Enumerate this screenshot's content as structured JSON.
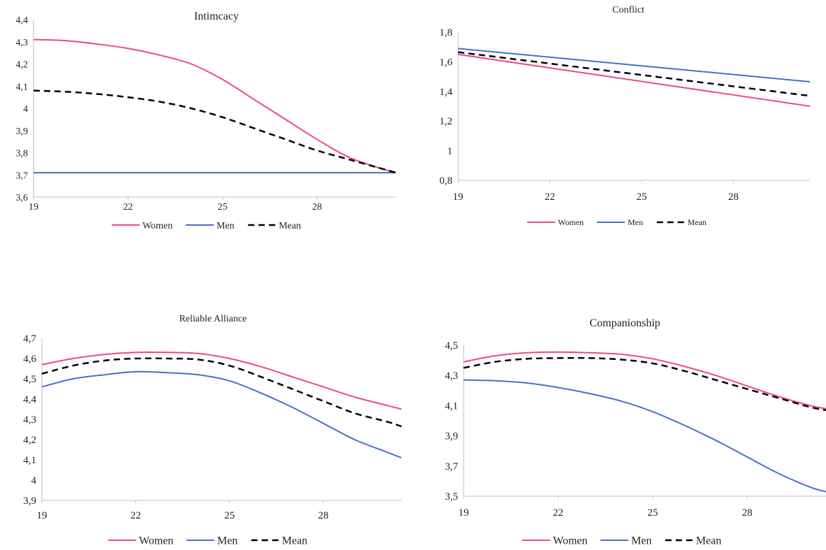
{
  "chart_data": [
    {
      "type": "line",
      "title": "Intimcacy",
      "x": [
        19,
        22,
        25,
        28,
        30.5
      ],
      "xticks": [
        19,
        22,
        25,
        28
      ],
      "ylim": [
        3.6,
        4.4
      ],
      "yticks": [
        "3,6",
        "3,7",
        "3,8",
        "3,9",
        "4",
        "4,1",
        "4,2",
        "4,3",
        "4,4"
      ],
      "grid": false,
      "legend": "bottom",
      "series": [
        {
          "name": "Women",
          "color": "#f0468c",
          "style": "solid",
          "x": [
            19,
            20,
            21,
            22,
            23,
            24,
            25,
            26,
            27,
            28,
            29,
            30,
            30.5
          ],
          "values": [
            4.31,
            4.305,
            4.29,
            4.27,
            4.24,
            4.2,
            4.13,
            4.04,
            3.95,
            3.86,
            3.78,
            3.73,
            3.71
          ]
        },
        {
          "name": "Men",
          "color": "#4472c4",
          "style": "solid",
          "x": [
            19,
            30.5
          ],
          "values": [
            3.71,
            3.71
          ]
        },
        {
          "name": "Mean",
          "color": "#000000",
          "style": "dashed",
          "x": [
            19,
            20,
            21,
            22,
            23,
            24,
            25,
            26,
            27,
            28,
            29,
            30,
            30.5
          ],
          "values": [
            4.08,
            4.075,
            4.065,
            4.05,
            4.03,
            4.0,
            3.96,
            3.91,
            3.86,
            3.81,
            3.77,
            3.73,
            3.71
          ]
        }
      ]
    },
    {
      "type": "line",
      "title": "Conflict",
      "x": [
        19,
        22,
        25,
        28,
        30.5
      ],
      "xticks": [
        19,
        22,
        25,
        28
      ],
      "ylim": [
        0.8,
        1.8
      ],
      "yticks": [
        "0,8",
        "1",
        "1,2",
        "1,4",
        "1,6",
        "1,8"
      ],
      "grid": false,
      "legend": "bottom",
      "series": [
        {
          "name": "Women",
          "color": "#f0468c",
          "style": "solid",
          "x": [
            19,
            30.5
          ],
          "values": [
            1.65,
            1.3
          ]
        },
        {
          "name": "Men",
          "color": "#4472c4",
          "style": "solid",
          "x": [
            19,
            30.5
          ],
          "values": [
            1.69,
            1.465
          ]
        },
        {
          "name": "Mean",
          "color": "#000000",
          "style": "dashed",
          "x": [
            19,
            30.5
          ],
          "values": [
            1.665,
            1.37
          ]
        }
      ]
    },
    {
      "type": "line",
      "title": "Reliable Alliance",
      "x": [
        19,
        22,
        25,
        28,
        30.5
      ],
      "xticks": [
        19,
        22,
        25,
        28
      ],
      "ylim": [
        3.9,
        4.7
      ],
      "yticks": [
        "3,9",
        "4",
        "4,1",
        "4,2",
        "4,3",
        "4,4",
        "4,5",
        "4,6",
        "4,7"
      ],
      "grid": false,
      "legend": "bottom",
      "series": [
        {
          "name": "Women",
          "color": "#f0468c",
          "style": "solid",
          "x": [
            19,
            20,
            21,
            22,
            23,
            24,
            25,
            26,
            27,
            28,
            29,
            30,
            30.5
          ],
          "values": [
            4.57,
            4.6,
            4.62,
            4.63,
            4.63,
            4.625,
            4.6,
            4.56,
            4.51,
            4.46,
            4.41,
            4.37,
            4.35
          ]
        },
        {
          "name": "Men",
          "color": "#4472c4",
          "style": "solid",
          "x": [
            19,
            20,
            21,
            22,
            23,
            24,
            25,
            26,
            27,
            28,
            29,
            30,
            30.5
          ],
          "values": [
            4.46,
            4.5,
            4.52,
            4.535,
            4.53,
            4.52,
            4.49,
            4.43,
            4.36,
            4.28,
            4.2,
            4.14,
            4.11
          ]
        },
        {
          "name": "Mean",
          "color": "#000000",
          "style": "dashed",
          "x": [
            19,
            20,
            21,
            22,
            23,
            24,
            25,
            26,
            27,
            28,
            29,
            30,
            30.5
          ],
          "values": [
            4.525,
            4.565,
            4.59,
            4.6,
            4.6,
            4.595,
            4.565,
            4.51,
            4.45,
            4.39,
            4.33,
            4.29,
            4.265
          ]
        }
      ]
    },
    {
      "type": "line",
      "title": "Companionship",
      "x": [
        19,
        22,
        25,
        28,
        30.5
      ],
      "xticks": [
        19,
        22,
        25,
        28
      ],
      "ylim": [
        3.5,
        4.5
      ],
      "yticks": [
        "3,5",
        "3,7",
        "3,9",
        "4,1",
        "4,3",
        "4,5"
      ],
      "grid": false,
      "legend": "bottom",
      "series": [
        {
          "name": "Women",
          "color": "#f0468c",
          "style": "solid",
          "x": [
            19,
            20,
            21,
            22,
            23,
            24,
            25,
            26,
            27,
            28,
            29,
            30,
            30.5
          ],
          "values": [
            4.39,
            4.43,
            4.45,
            4.455,
            4.45,
            4.44,
            4.41,
            4.36,
            4.3,
            4.23,
            4.16,
            4.1,
            4.08
          ]
        },
        {
          "name": "Men",
          "color": "#4472c4",
          "style": "solid",
          "x": [
            19,
            20,
            21,
            22,
            23,
            24,
            25,
            26,
            27,
            28,
            29,
            30,
            30.5
          ],
          "values": [
            4.27,
            4.265,
            4.25,
            4.22,
            4.18,
            4.13,
            4.06,
            3.97,
            3.87,
            3.76,
            3.65,
            3.56,
            3.53
          ]
        },
        {
          "name": "Mean",
          "color": "#000000",
          "style": "dashed",
          "x": [
            19,
            20,
            21,
            22,
            23,
            24,
            25,
            26,
            27,
            28,
            29,
            30,
            30.5
          ],
          "values": [
            4.35,
            4.39,
            4.41,
            4.415,
            4.415,
            4.405,
            4.38,
            4.33,
            4.27,
            4.21,
            4.15,
            4.09,
            4.07
          ]
        }
      ]
    }
  ]
}
